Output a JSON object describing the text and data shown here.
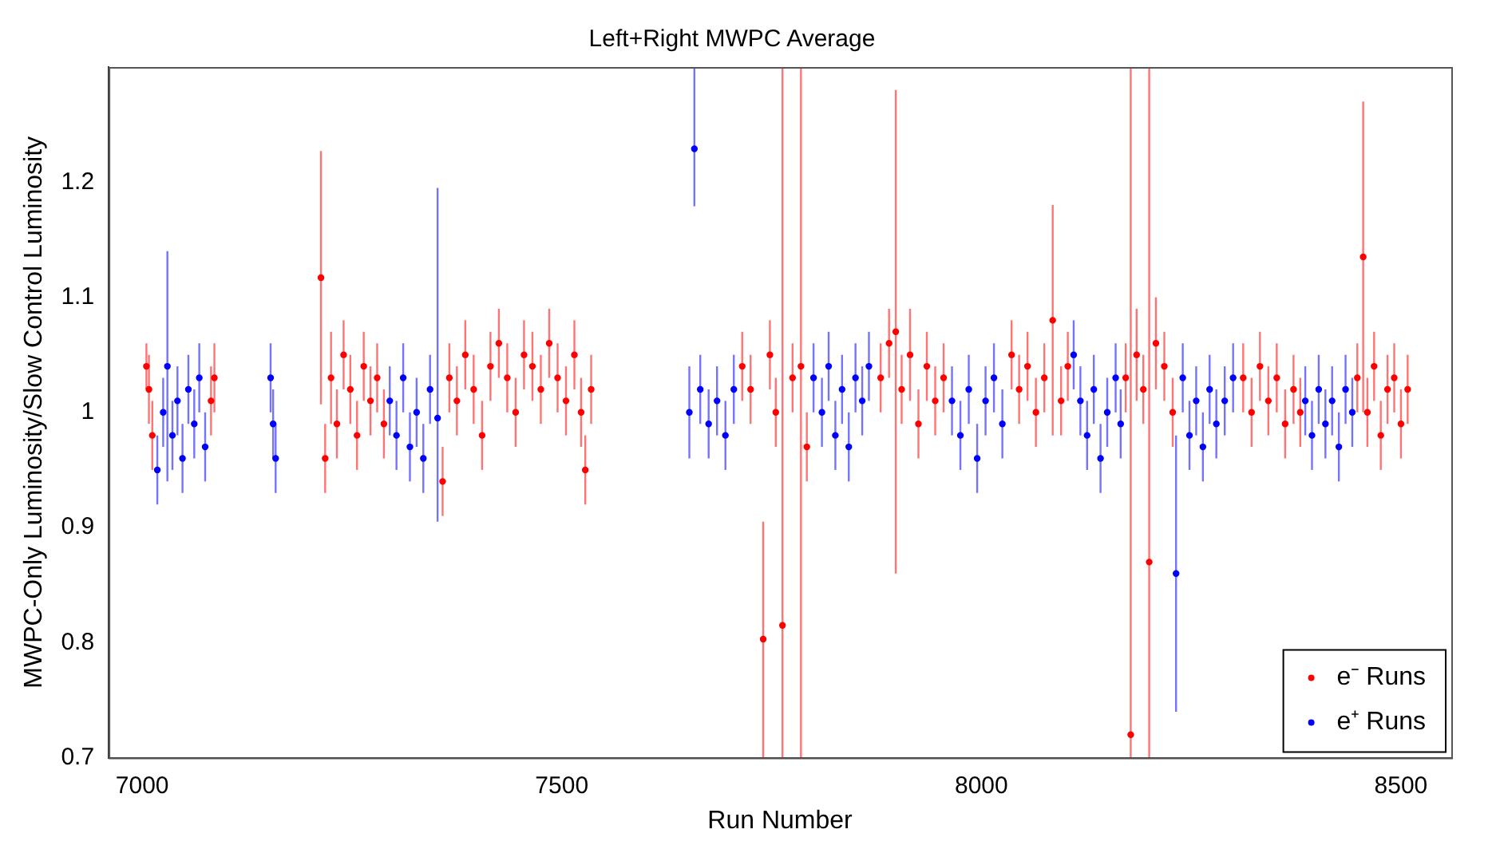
{
  "chart_data": {
    "type": "scatter",
    "title": "Left+Right MWPC Average",
    "xlabel": "Run Number",
    "ylabel": "MWPC-Only Luminosity/Slow Control Luminosity",
    "xlim": [
      6960,
      8560
    ],
    "ylim": [
      0.7,
      1.3
    ],
    "xticks": [
      7000,
      7500,
      8000,
      8500
    ],
    "yticks": [
      0.7,
      0.8,
      0.9,
      1,
      1.1,
      1.2
    ],
    "legend": "bottom right",
    "marker": "circle",
    "series": [
      {
        "name": "e⁻ Runs",
        "color": "#ff0000",
        "x": [
          7005,
          7008,
          7012,
          7082,
          7086,
          7213,
          7218,
          7225,
          7232,
          7240,
          7248,
          7256,
          7264,
          7272,
          7280,
          7288,
          7358,
          7366,
          7375,
          7385,
          7395,
          7405,
          7415,
          7425,
          7435,
          7445,
          7455,
          7465,
          7475,
          7485,
          7495,
          7505,
          7515,
          7523,
          7528,
          7535,
          7715,
          7725,
          7740,
          7748,
          7755,
          7763,
          7775,
          7785,
          7792,
          7880,
          7890,
          7898,
          7905,
          7915,
          7925,
          7935,
          7945,
          7955,
          8036,
          8045,
          8055,
          8065,
          8075,
          8085,
          8095,
          8103,
          8172,
          8178,
          8185,
          8193,
          8200,
          8208,
          8218,
          8228,
          8312,
          8322,
          8332,
          8342,
          8352,
          8362,
          8372,
          8380,
          8448,
          8455,
          8460,
          8468,
          8476,
          8484,
          8492,
          8500,
          8508
        ],
        "values": [
          1.04,
          1.02,
          0.98,
          1.01,
          1.03,
          1.117,
          0.96,
          1.03,
          0.99,
          1.05,
          1.02,
          0.98,
          1.04,
          1.01,
          1.03,
          0.99,
          0.94,
          1.03,
          1.01,
          1.05,
          1.02,
          0.98,
          1.04,
          1.06,
          1.03,
          1.0,
          1.05,
          1.04,
          1.02,
          1.06,
          1.03,
          1.01,
          1.05,
          1.0,
          0.95,
          1.02,
          1.04,
          1.02,
          0.803,
          1.05,
          1.0,
          0.815,
          1.03,
          1.04,
          0.97,
          1.03,
          1.06,
          1.07,
          1.02,
          1.05,
          0.99,
          1.04,
          1.01,
          1.03,
          1.05,
          1.02,
          1.04,
          1.0,
          1.03,
          1.08,
          1.01,
          1.04,
          1.03,
          0.72,
          1.05,
          1.02,
          0.87,
          1.06,
          1.04,
          1.0,
          1.03,
          1.0,
          1.04,
          1.01,
          1.03,
          0.99,
          1.02,
          1.0,
          1.03,
          1.135,
          1.0,
          1.04,
          0.98,
          1.02,
          1.03,
          0.99,
          1.02
        ],
        "errors": [
          0.02,
          0.03,
          0.03,
          0.03,
          0.03,
          0.11,
          0.03,
          0.04,
          0.03,
          0.03,
          0.03,
          0.03,
          0.03,
          0.03,
          0.03,
          0.03,
          0.03,
          0.03,
          0.03,
          0.03,
          0.03,
          0.03,
          0.03,
          0.03,
          0.03,
          0.03,
          0.03,
          0.03,
          0.03,
          0.03,
          0.03,
          0.03,
          0.03,
          0.03,
          0.03,
          0.03,
          0.03,
          0.03,
          [
            0.7,
            0.905
          ],
          0.03,
          0.03,
          [
            0.7,
            1.3
          ],
          0.03,
          [
            0.7,
            1.3
          ],
          0.03,
          0.03,
          0.03,
          0.21,
          0.03,
          0.04,
          0.03,
          0.03,
          0.03,
          0.03,
          0.03,
          0.03,
          0.03,
          0.03,
          0.03,
          0.1,
          0.03,
          0.03,
          0.03,
          [
            0.7,
            1.3
          ],
          0.04,
          0.03,
          [
            0.7,
            1.3
          ],
          0.04,
          0.03,
          0.03,
          0.03,
          0.03,
          0.03,
          0.03,
          0.03,
          0.03,
          0.03,
          0.03,
          0.03,
          0.135,
          0.03,
          0.03,
          0.03,
          0.03,
          0.03,
          0.03,
          0.03
        ]
      },
      {
        "name": "e⁺ Runs",
        "color": "#0000ff",
        "x": [
          7018,
          7025,
          7030,
          7036,
          7042,
          7048,
          7055,
          7062,
          7068,
          7075,
          7153,
          7156,
          7159,
          7295,
          7303,
          7311,
          7319,
          7327,
          7335,
          7343,
          7352,
          7652,
          7658,
          7665,
          7675,
          7685,
          7695,
          7705,
          7800,
          7810,
          7818,
          7826,
          7834,
          7842,
          7850,
          7858,
          7866,
          7965,
          7975,
          7985,
          7995,
          8005,
          8015,
          8025,
          8110,
          8118,
          8126,
          8134,
          8142,
          8150,
          8160,
          8166,
          8232,
          8240,
          8248,
          8256,
          8264,
          8272,
          8280,
          8290,
          8300,
          8386,
          8394,
          8402,
          8410,
          8418,
          8426,
          8434,
          8442
        ],
        "values": [
          0.95,
          1.0,
          1.04,
          0.98,
          1.01,
          0.96,
          1.02,
          0.99,
          1.03,
          0.97,
          1.03,
          0.99,
          0.96,
          1.01,
          0.98,
          1.03,
          0.97,
          1.0,
          0.96,
          1.02,
          0.995,
          1.0,
          1.229,
          1.02,
          0.99,
          1.01,
          0.98,
          1.02,
          1.03,
          1.0,
          1.04,
          0.98,
          1.02,
          0.97,
          1.03,
          1.01,
          1.04,
          1.01,
          0.98,
          1.02,
          0.96,
          1.01,
          1.03,
          0.99,
          1.05,
          1.01,
          0.98,
          1.02,
          0.96,
          1.0,
          1.03,
          0.99,
          0.86,
          1.03,
          0.98,
          1.01,
          0.97,
          1.02,
          0.99,
          1.01,
          1.03,
          1.01,
          0.98,
          1.02,
          0.99,
          1.01,
          0.97,
          1.02,
          1.0
        ],
        "errors": [
          0.03,
          0.03,
          0.1,
          0.03,
          0.03,
          0.03,
          0.03,
          0.03,
          0.03,
          0.03,
          0.03,
          0.03,
          0.03,
          0.03,
          0.03,
          0.03,
          0.03,
          0.03,
          0.03,
          0.03,
          [
            0.905,
            1.195
          ],
          0.04,
          [
            1.179,
            1.3
          ],
          0.03,
          0.03,
          0.03,
          0.03,
          0.03,
          0.03,
          0.03,
          0.03,
          0.03,
          0.03,
          0.03,
          0.03,
          0.03,
          0.03,
          0.03,
          0.03,
          0.03,
          0.03,
          0.03,
          0.03,
          0.03,
          0.03,
          0.03,
          0.03,
          0.03,
          0.03,
          0.03,
          0.03,
          0.03,
          0.12,
          0.03,
          0.03,
          0.03,
          0.03,
          0.03,
          0.03,
          0.03,
          0.03,
          0.03,
          0.03,
          0.03,
          0.03,
          0.03,
          0.03,
          0.03,
          0.03
        ]
      }
    ]
  }
}
